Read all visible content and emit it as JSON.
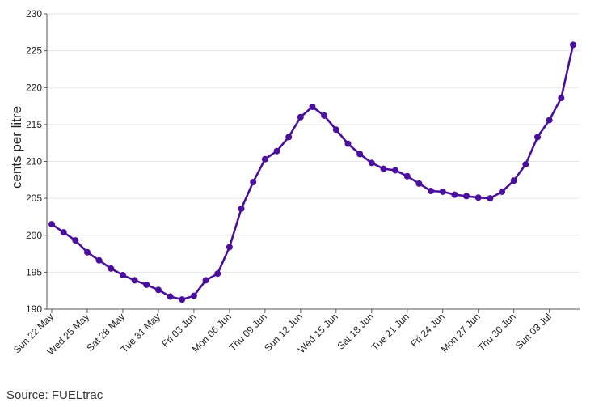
{
  "chart_data": {
    "type": "line",
    "ylabel": "cents per litre",
    "xlabel": "",
    "ylim": [
      190,
      230
    ],
    "yticks": [
      190,
      195,
      200,
      205,
      210,
      215,
      220,
      225,
      230
    ],
    "grid": "horizontal",
    "line_color": "#4b0f9e",
    "marker_color": "#4b0f9e",
    "x_tick_labels": [
      "Sun 22 May",
      "Wed 25 May",
      "Sat 28 May",
      "Tue 31 May",
      "Fri 03 Jun",
      "Mon 06 Jun",
      "Thu 09 Jun",
      "Sun 12 Jun",
      "Wed 15 Jun",
      "Sat 18 Jun",
      "Tue 21 Jun",
      "Fri 24 Jun",
      "Mon 27 Jun",
      "Thu 30 Jun",
      "Sun 03 Jul"
    ],
    "x": [
      "2022-05-22",
      "2022-05-23",
      "2022-05-24",
      "2022-05-25",
      "2022-05-26",
      "2022-05-27",
      "2022-05-28",
      "2022-05-29",
      "2022-05-30",
      "2022-05-31",
      "2022-06-01",
      "2022-06-02",
      "2022-06-03",
      "2022-06-04",
      "2022-06-05",
      "2022-06-06",
      "2022-06-07",
      "2022-06-08",
      "2022-06-09",
      "2022-06-10",
      "2022-06-11",
      "2022-06-12",
      "2022-06-13",
      "2022-06-14",
      "2022-06-15",
      "2022-06-16",
      "2022-06-17",
      "2022-06-18",
      "2022-06-19",
      "2022-06-20",
      "2022-06-21",
      "2022-06-22",
      "2022-06-23",
      "2022-06-24",
      "2022-06-25",
      "2022-06-26",
      "2022-06-27",
      "2022-06-28",
      "2022-06-29",
      "2022-06-30",
      "2022-07-01",
      "2022-07-02",
      "2022-07-03",
      "2022-07-04",
      "2022-07-05"
    ],
    "values": [
      201.5,
      200.4,
      199.3,
      197.7,
      196.6,
      195.5,
      194.6,
      193.9,
      193.3,
      192.6,
      191.7,
      191.3,
      191.8,
      193.9,
      194.8,
      198.4,
      203.6,
      207.2,
      210.3,
      211.4,
      213.3,
      216.0,
      217.4,
      216.2,
      214.3,
      212.4,
      211.0,
      209.8,
      209.0,
      208.8,
      208.0,
      207.0,
      206.0,
      205.9,
      205.5,
      205.3,
      205.1,
      205.0,
      205.9,
      207.4,
      209.6,
      213.3,
      215.6,
      218.6,
      225.8
    ]
  },
  "source": "Source: FUELtrac"
}
